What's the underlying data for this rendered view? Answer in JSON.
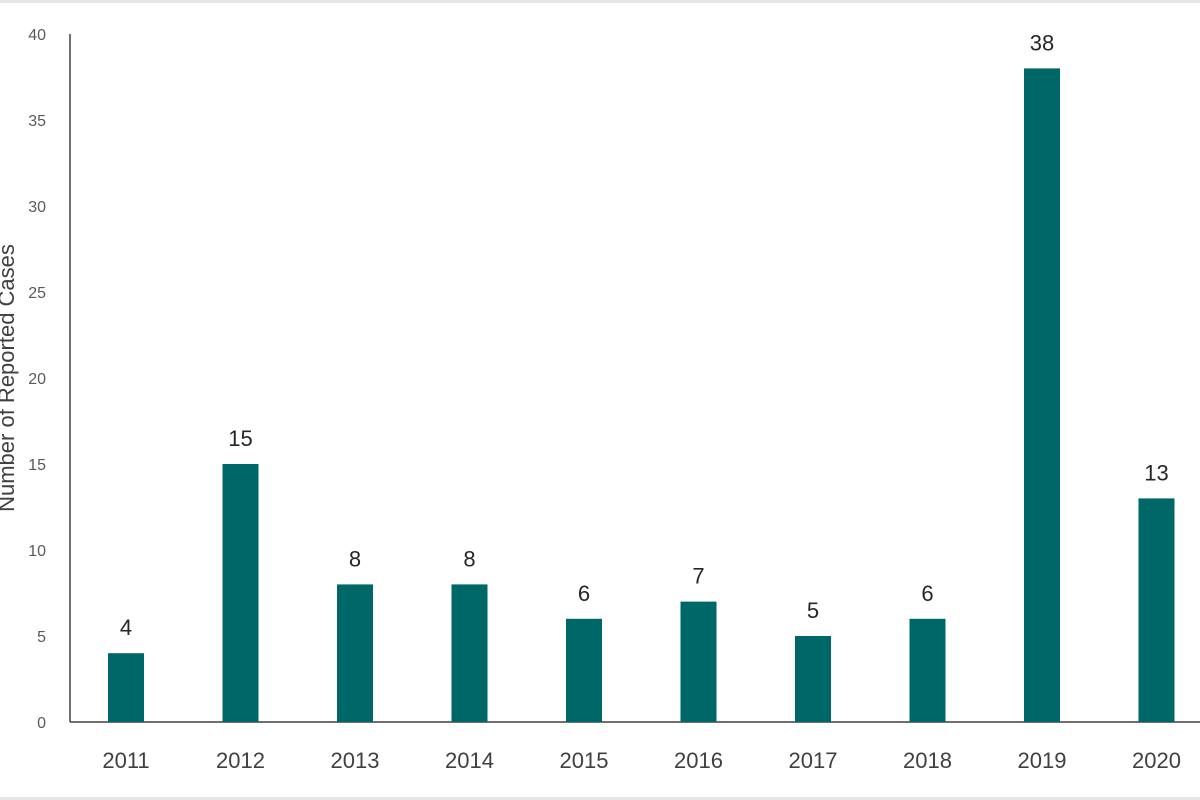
{
  "chart_data": {
    "type": "bar",
    "title": "",
    "xlabel": "",
    "ylabel": "Number of Reported Cases",
    "categories": [
      "2011",
      "2012",
      "2013",
      "2014",
      "2015",
      "2016",
      "2017",
      "2018",
      "2019",
      "2020"
    ],
    "values": [
      4,
      15,
      8,
      8,
      6,
      7,
      5,
      6,
      38,
      13
    ],
    "ylim": [
      0,
      40
    ],
    "yticks": [
      0,
      5,
      10,
      15,
      20,
      25,
      30,
      35,
      40
    ],
    "grid": false,
    "legend": "none",
    "bar_color": "#006769",
    "data_labels": true
  }
}
